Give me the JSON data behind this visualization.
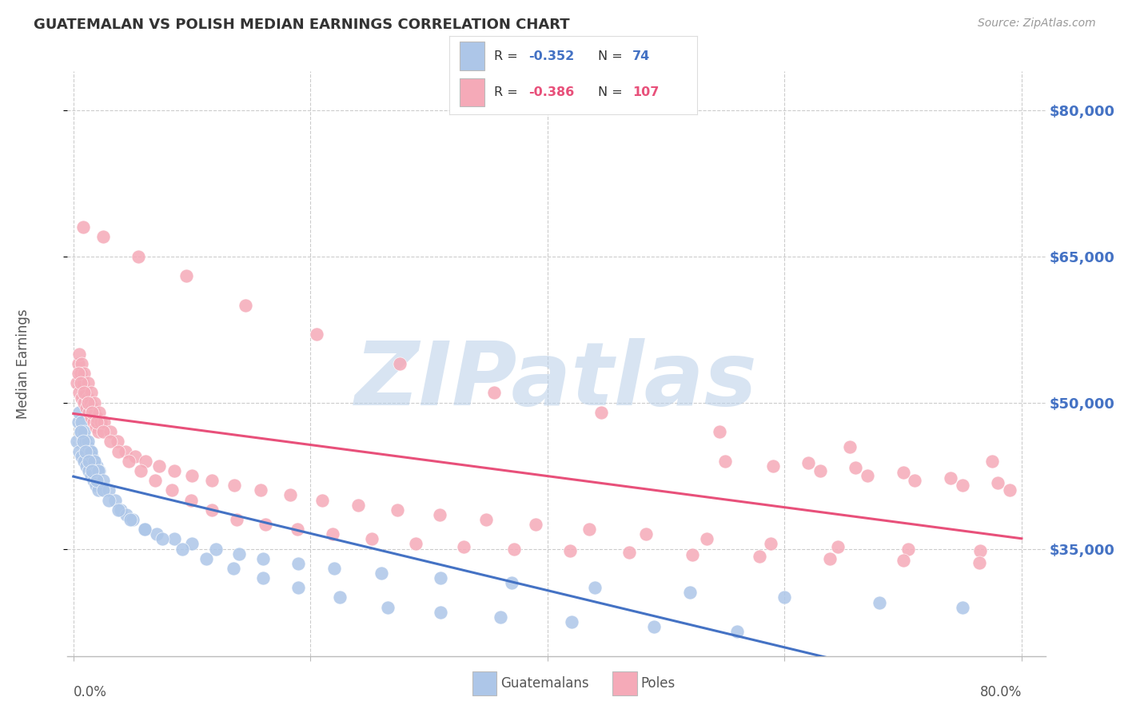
{
  "title": "GUATEMALAN VS POLISH MEDIAN EARNINGS CORRELATION CHART",
  "source": "Source: ZipAtlas.com",
  "ylabel": "Median Earnings",
  "ytick_labels": [
    "$35,000",
    "$50,000",
    "$65,000",
    "$80,000"
  ],
  "ytick_values": [
    35000,
    50000,
    65000,
    80000
  ],
  "ymin": 24000,
  "ymax": 84000,
  "xmin": -0.005,
  "xmax": 0.82,
  "guatemalan_color": "#adc6e8",
  "polish_color": "#f5aab8",
  "guatemalan_line_color": "#4472c4",
  "polish_line_color": "#e8507a",
  "watermark": "ZIPatlas",
  "watermark_blue": "#b8cfe8",
  "watermark_gray": "#a8b8c8",
  "background_color": "#ffffff",
  "grid_color": "#cccccc",
  "scatter_guatemalan_x": [
    0.003,
    0.005,
    0.007,
    0.009,
    0.011,
    0.013,
    0.015,
    0.017,
    0.019,
    0.021,
    0.004,
    0.006,
    0.008,
    0.01,
    0.012,
    0.014,
    0.016,
    0.018,
    0.02,
    0.022,
    0.005,
    0.007,
    0.009,
    0.012,
    0.015,
    0.018,
    0.021,
    0.025,
    0.03,
    0.035,
    0.04,
    0.045,
    0.05,
    0.06,
    0.07,
    0.085,
    0.1,
    0.12,
    0.14,
    0.16,
    0.19,
    0.22,
    0.26,
    0.31,
    0.37,
    0.44,
    0.52,
    0.6,
    0.68,
    0.75,
    0.006,
    0.008,
    0.01,
    0.013,
    0.016,
    0.02,
    0.025,
    0.03,
    0.038,
    0.048,
    0.06,
    0.075,
    0.092,
    0.112,
    0.135,
    0.16,
    0.19,
    0.225,
    0.265,
    0.31,
    0.36,
    0.42,
    0.49,
    0.56
  ],
  "scatter_guatemalan_y": [
    46000,
    45000,
    44500,
    44000,
    43500,
    43000,
    42500,
    42000,
    41500,
    41000,
    48000,
    47000,
    46500,
    46000,
    45500,
    45000,
    44500,
    44000,
    43500,
    43000,
    49000,
    48000,
    47000,
    46000,
    45000,
    44000,
    43000,
    42000,
    41000,
    40000,
    39000,
    38500,
    38000,
    37000,
    36500,
    36000,
    35500,
    35000,
    34500,
    34000,
    33500,
    33000,
    32500,
    32000,
    31500,
    31000,
    30500,
    30000,
    29500,
    29000,
    47000,
    46000,
    45000,
    44000,
    43000,
    42000,
    41000,
    40000,
    39000,
    38000,
    37000,
    36000,
    35000,
    34000,
    33000,
    32000,
    31000,
    30000,
    29000,
    28500,
    28000,
    27500,
    27000,
    26500
  ],
  "scatter_polish_x": [
    0.003,
    0.005,
    0.007,
    0.009,
    0.011,
    0.013,
    0.015,
    0.017,
    0.019,
    0.021,
    0.004,
    0.006,
    0.008,
    0.01,
    0.012,
    0.014,
    0.016,
    0.018,
    0.02,
    0.023,
    0.005,
    0.007,
    0.009,
    0.012,
    0.015,
    0.018,
    0.022,
    0.026,
    0.031,
    0.037,
    0.044,
    0.052,
    0.061,
    0.072,
    0.085,
    0.1,
    0.117,
    0.136,
    0.158,
    0.183,
    0.21,
    0.24,
    0.273,
    0.309,
    0.348,
    0.39,
    0.435,
    0.483,
    0.534,
    0.588,
    0.645,
    0.704,
    0.765,
    0.004,
    0.006,
    0.009,
    0.012,
    0.016,
    0.02,
    0.025,
    0.031,
    0.038,
    0.047,
    0.057,
    0.069,
    0.083,
    0.099,
    0.117,
    0.138,
    0.162,
    0.189,
    0.219,
    0.252,
    0.289,
    0.329,
    0.372,
    0.419,
    0.469,
    0.522,
    0.579,
    0.638,
    0.7,
    0.764,
    0.55,
    0.59,
    0.63,
    0.67,
    0.71,
    0.75,
    0.79,
    0.62,
    0.66,
    0.7,
    0.74,
    0.78,
    0.008,
    0.025,
    0.055,
    0.095,
    0.145,
    0.205,
    0.275,
    0.355,
    0.445,
    0.545,
    0.655,
    0.775
  ],
  "scatter_polish_y": [
    52000,
    51000,
    50500,
    50000,
    49500,
    49000,
    48500,
    48000,
    47500,
    47000,
    54000,
    53000,
    52000,
    51000,
    50500,
    50000,
    49500,
    49000,
    48500,
    48000,
    55000,
    54000,
    53000,
    52000,
    51000,
    50000,
    49000,
    48000,
    47000,
    46000,
    45000,
    44500,
    44000,
    43500,
    43000,
    42500,
    42000,
    41500,
    41000,
    40500,
    40000,
    39500,
    39000,
    38500,
    38000,
    37500,
    37000,
    36500,
    36000,
    35500,
    35200,
    35000,
    34800,
    53000,
    52000,
    51000,
    50000,
    49000,
    48000,
    47000,
    46000,
    45000,
    44000,
    43000,
    42000,
    41000,
    40000,
    39000,
    38000,
    37500,
    37000,
    36500,
    36000,
    35500,
    35200,
    35000,
    34800,
    34600,
    34400,
    34200,
    34000,
    33800,
    33600,
    44000,
    43500,
    43000,
    42500,
    42000,
    41500,
    41000,
    43800,
    43300,
    42800,
    42300,
    41800,
    68000,
    67000,
    65000,
    63000,
    60000,
    57000,
    54000,
    51000,
    49000,
    47000,
    45500,
    44000
  ]
}
